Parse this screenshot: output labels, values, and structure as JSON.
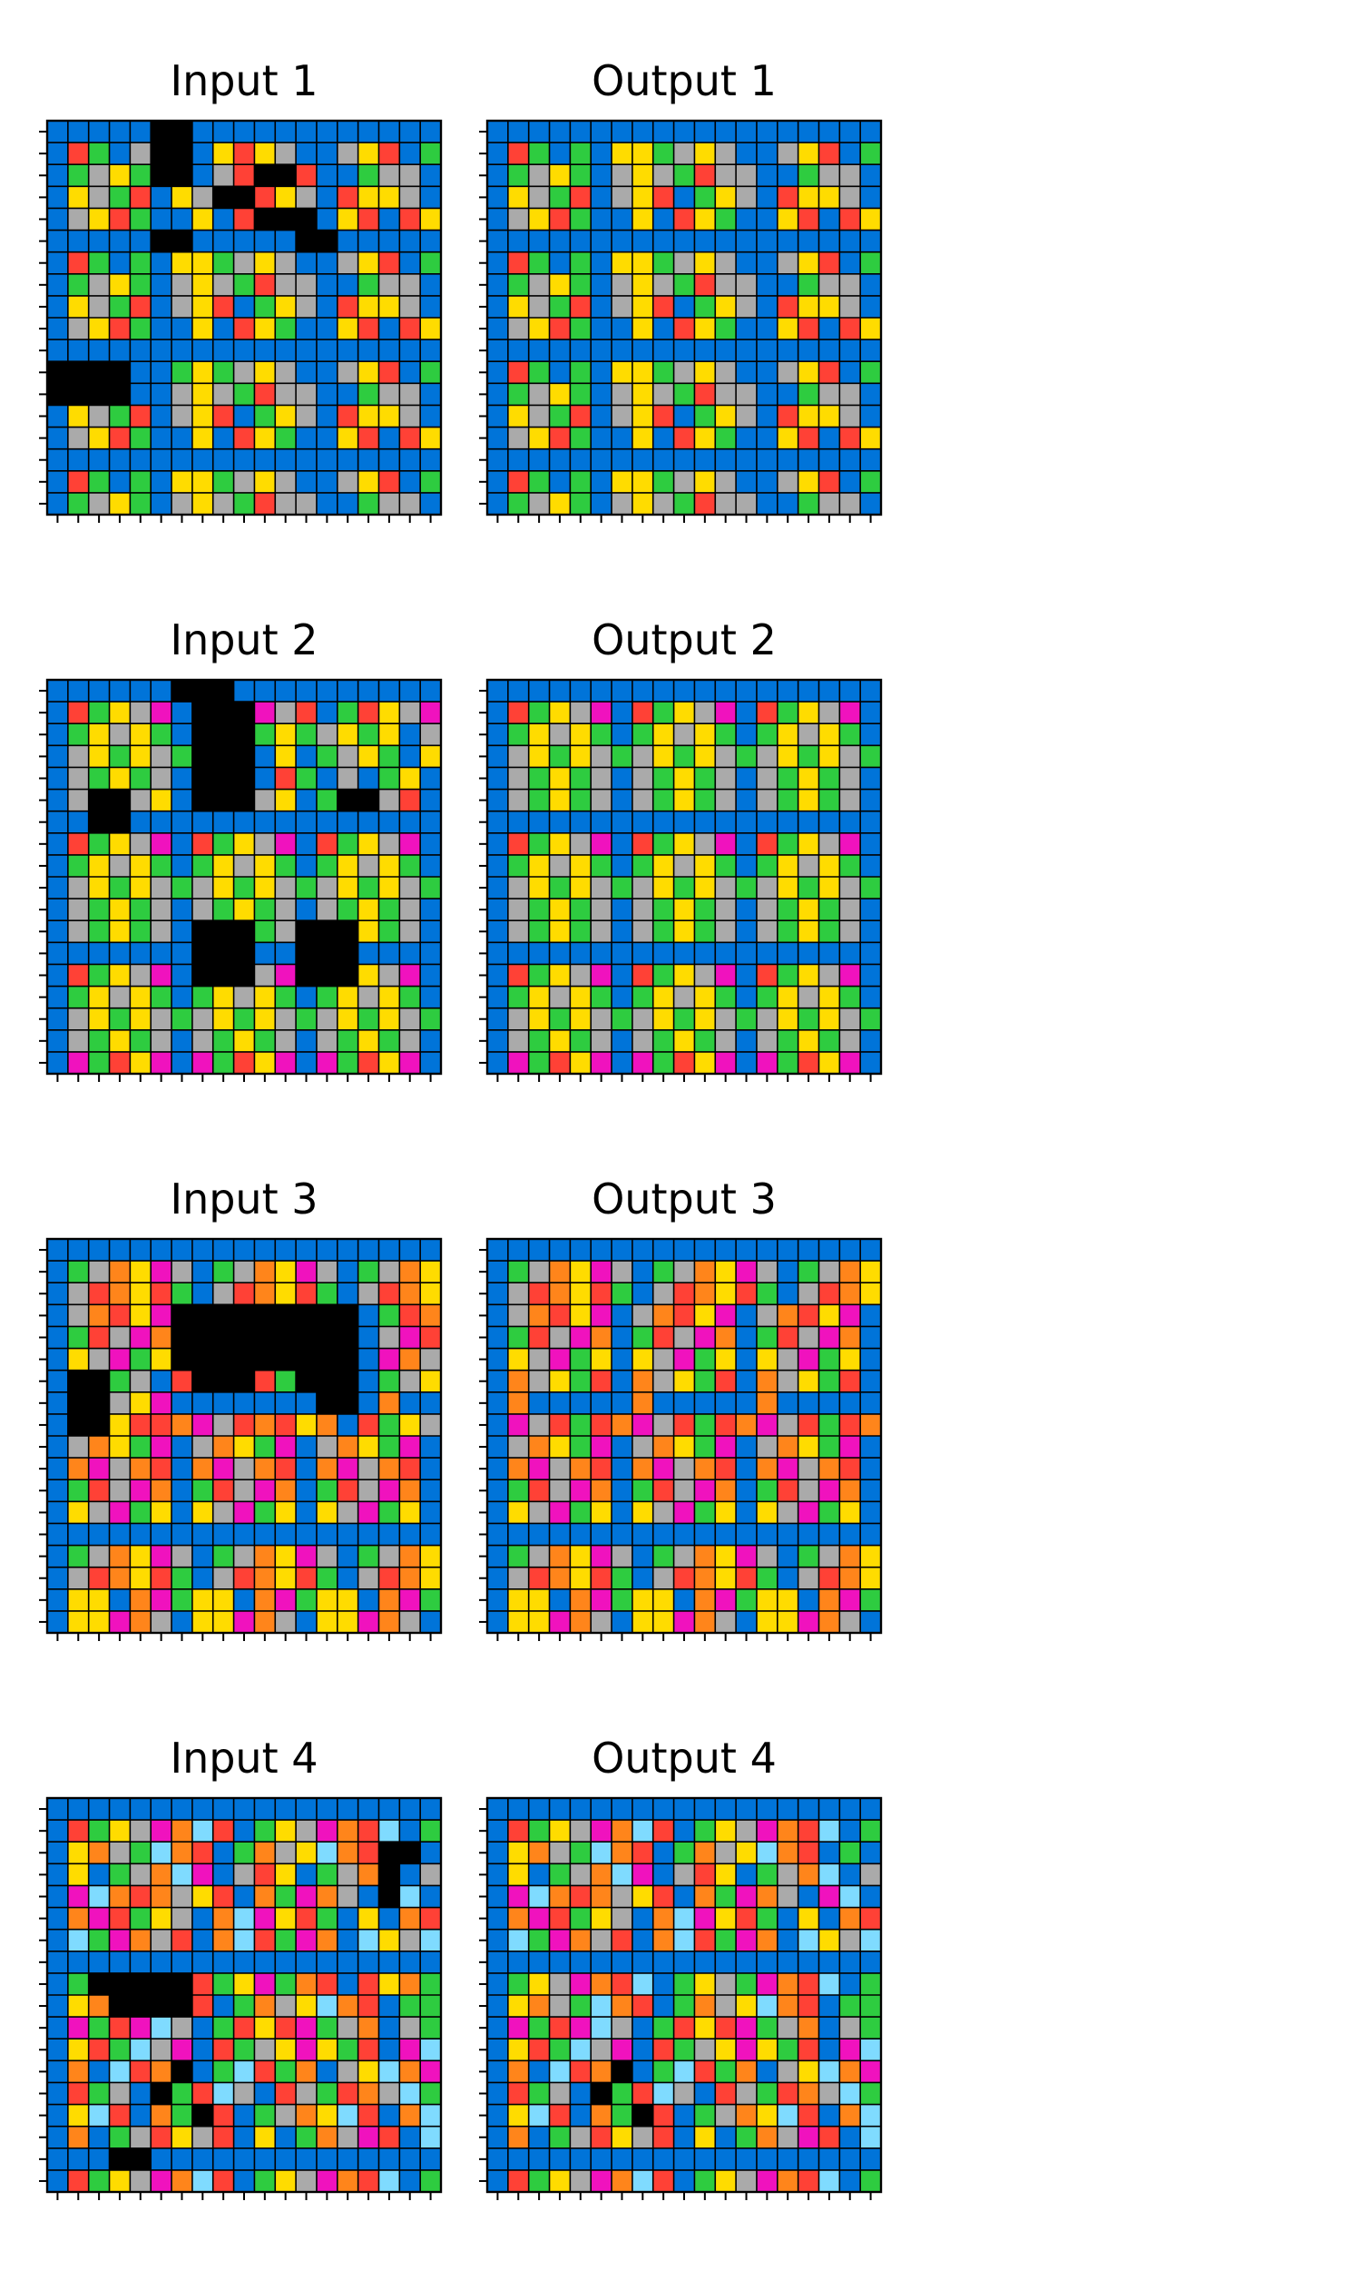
{
  "palette": {
    "0": "#000000",
    "1": "#0074D9",
    "2": "#FF4136",
    "3": "#2ECC40",
    "4": "#FFDC00",
    "5": "#AAAAAA",
    "6": "#F012BE",
    "7": "#FF851B",
    "8": "#7FDBFF",
    "9": "#870C25"
  },
  "grid_line_color": "#000000",
  "pairs": [
    {
      "input": {
        "title": "Input 1",
        "grid": [
          "1111100111111111111",
          "1231500142451154213",
          "1354300152002113551",
          "1453214500245124451",
          "1542311412000142124",
          "1111100111110011111",
          "1231314435451154213",
          "1354315453255113551",
          "1453215421345124451",
          "1542311412431142124",
          "1111111111111111111",
          "0000113435451154213",
          "0000115453255113551",
          "1453215421345124451",
          "1542311412431142124",
          "1111111111111111111",
          "1231314435451154213",
          "1354315453255113551"
        ]
      },
      "output": {
        "title": "Output 1",
        "grid": [
          "1111111111111111111",
          "1231314435451154213",
          "1354315453255113551",
          "1453215421345124451",
          "1542311412431142124",
          "1111111111111111111",
          "1231314435451154213",
          "1354315453255113551",
          "1453215421345124451",
          "1542311412431142124",
          "1111111111111111111",
          "1231314435451154213",
          "1354315453255113551",
          "1453215421345124451",
          "1542311412431142124",
          "1111111111111111111",
          "1231314435451154213",
          "1354315453255113551"
        ]
      }
    },
    {
      "input": {
        "title": "Input 2",
        "grid": [
          "1111110001111111111",
          "1234561000652132456",
          "1345431000343543415",
          "1543453000141354314",
          "1534351000123151341",
          "1500541000541300521",
          "1100111111111111111",
          "1234561234561234561",
          "1345431345431345431",
          "1543453543453543453",
          "1534351534351534351",
          "1534351000350004351",
          "1111111000110001111",
          "1234561000560004561",
          "1345431345431345431",
          "1543453543453543453",
          "1534351534351534351",
          "1632461632461632461"
        ]
      },
      "output": {
        "title": "Output 2",
        "grid": [
          "1111111111111111111",
          "1234561234561234561",
          "1345431345431345431",
          "1543453543453543453",
          "1534351534351534351",
          "1534351534351534351",
          "1111111111111111111",
          "1234561234561234561",
          "1345431345431345431",
          "1543453543453543453",
          "1534351534351534351",
          "1534351534351534351",
          "1111111111111111111",
          "1234561234561234561",
          "1345431345431345431",
          "1543453543453543453",
          "1534351534351534351",
          "1632461632461632461"
        ]
      }
    },
    {
      "input": {
        "title": "Input 3",
        "grid": [
          "1111111111111111111",
          "1357465135746513574",
          "1527423152742315274",
          "1572460000000001327",
          "1325670000000001562",
          "1456340000000001675",
          "1003512000230001354",
          "1005461111111001711",
          "1004227652724712345",
          "1574361574361574361",
          "1765721765721765721",
          "1325671325671325671",
          "1456341456341456341",
          "1111111111111111111",
          "1357465135746513574",
          "1527423152742315274",
          "1441763441763441763",
          "1446751446751446751"
        ]
      },
      "output": {
        "title": "Output 3",
        "grid": [
          "1111111111111111111",
          "1357465135746513574",
          "1527423152742315274",
          "1572461572461572461",
          "1325671325671325671",
          "1456341456341456341",
          "1754321754321754321",
          "1711111711111711111",
          "1652327652327652327",
          "1574361574361574361",
          "1765721765721765721",
          "1325671325671325671",
          "1456341456341456341",
          "1111111111111111111",
          "1357465135746513574",
          "1527423152742315274",
          "1441763441763441763",
          "1446751446751446751"
        ]
      }
    },
    {
      "input": {
        "title": "Input 4",
        "grid": [
          "1111111111111111111",
          "1234567821345672813",
          "1475387213754872001",
          "1413578615241357015",
          "1687275421736751081",
          "1762345178642314172",
          "1836752178236718458",
          "1111111111111111111",
          "1300000234637212473",
          "1470000213754872133",
          "1632685132426357153",
          "1423856123546432168",
          "1718270138237154876",
          "1235103285125327583",
          "1482173021357482178",
          "1713524521413756218",
          "1110011111111111111",
          "1234567821345672813"
        ]
      },
      "output": {
        "title": "Output 4",
        "grid": [
          "1111111111111111111",
          "1234567821345672813",
          "1475387213754872131",
          "1413578615241357815",
          "1687275421736751681",
          "1762345178642314172",
          "1836752178236718458",
          "1111111111111111111",
          "1345672813453672813",
          "1475387213754872133",
          "1632685132426357153",
          "1423856123546432168",
          "1718270138237154876",
          "1235103285125327583",
          "1482173021357482178",
          "1713524521413756218",
          "1111111111111111111",
          "1234567821345672813"
        ]
      }
    }
  ]
}
